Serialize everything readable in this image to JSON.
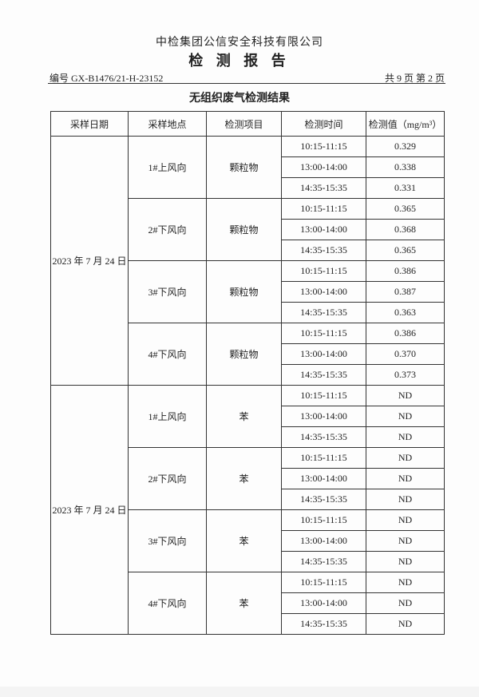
{
  "header": {
    "company": "中检集团公信安全科技有限公司",
    "title": "检 测 报 告",
    "report_no": "编号 GX-B1476/21-H-23152",
    "page_info": "共 9 页  第 2 页"
  },
  "table": {
    "title": "无组织废气检测结果",
    "columns": [
      "采样日期",
      "采样地点",
      "检测项目",
      "检测时间",
      "检测值（mg/m³）"
    ],
    "groups": [
      {
        "date": "2023 年 7 月 24 日",
        "points": [
          {
            "location": "1#上风向",
            "item": "颗粒物",
            "samples": [
              {
                "time": "10:15-11:15",
                "value": "0.329"
              },
              {
                "time": "13:00-14:00",
                "value": "0.338"
              },
              {
                "time": "14:35-15:35",
                "value": "0.331"
              }
            ]
          },
          {
            "location": "2#下风向",
            "item": "颗粒物",
            "samples": [
              {
                "time": "10:15-11:15",
                "value": "0.365"
              },
              {
                "time": "13:00-14:00",
                "value": "0.368"
              },
              {
                "time": "14:35-15:35",
                "value": "0.365"
              }
            ]
          },
          {
            "location": "3#下风向",
            "item": "颗粒物",
            "samples": [
              {
                "time": "10:15-11:15",
                "value": "0.386"
              },
              {
                "time": "13:00-14:00",
                "value": "0.387"
              },
              {
                "time": "14:35-15:35",
                "value": "0.363"
              }
            ]
          },
          {
            "location": "4#下风向",
            "item": "颗粒物",
            "samples": [
              {
                "time": "10:15-11:15",
                "value": "0.386"
              },
              {
                "time": "13:00-14:00",
                "value": "0.370"
              },
              {
                "time": "14:35-15:35",
                "value": "0.373"
              }
            ]
          }
        ]
      },
      {
        "date": "2023 年 7 月 24 日",
        "points": [
          {
            "location": "1#上风向",
            "item": "苯",
            "samples": [
              {
                "time": "10:15-11:15",
                "value": "ND"
              },
              {
                "time": "13:00-14:00",
                "value": "ND"
              },
              {
                "time": "14:35-15:35",
                "value": "ND"
              }
            ]
          },
          {
            "location": "2#下风向",
            "item": "苯",
            "samples": [
              {
                "time": "10:15-11:15",
                "value": "ND"
              },
              {
                "time": "13:00-14:00",
                "value": "ND"
              },
              {
                "time": "14:35-15:35",
                "value": "ND"
              }
            ]
          },
          {
            "location": "3#下风向",
            "item": "苯",
            "samples": [
              {
                "time": "10:15-11:15",
                "value": "ND"
              },
              {
                "time": "13:00-14:00",
                "value": "ND"
              },
              {
                "time": "14:35-15:35",
                "value": "ND"
              }
            ]
          },
          {
            "location": "4#下风向",
            "item": "苯",
            "samples": [
              {
                "time": "10:15-11:15",
                "value": "ND"
              },
              {
                "time": "13:00-14:00",
                "value": "ND"
              },
              {
                "time": "14:35-15:35",
                "value": "ND"
              }
            ]
          }
        ]
      }
    ]
  }
}
